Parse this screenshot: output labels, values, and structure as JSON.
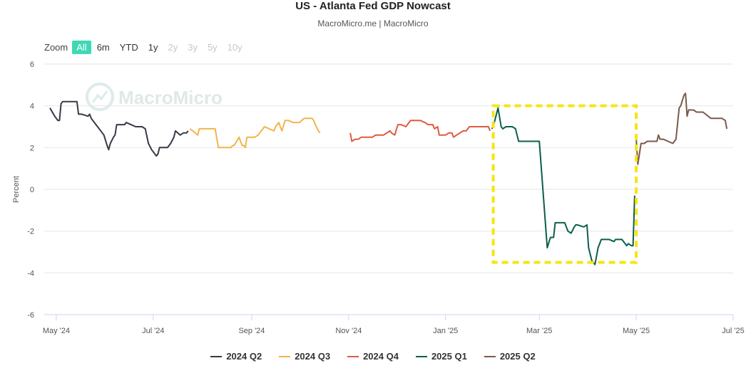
{
  "title": "US - Atlanta Fed GDP Nowcast",
  "subtitle": "MacroMicro.me | MacroMicro",
  "watermark": "MacroMicro",
  "zoom": {
    "label": "Zoom",
    "buttons": [
      {
        "label": "All",
        "state": "active"
      },
      {
        "label": "6m",
        "state": "normal"
      },
      {
        "label": "YTD",
        "state": "normal"
      },
      {
        "label": "1y",
        "state": "normal"
      },
      {
        "label": "2y",
        "state": "disabled"
      },
      {
        "label": "3y",
        "state": "disabled"
      },
      {
        "label": "5y",
        "state": "disabled"
      },
      {
        "label": "10y",
        "state": "disabled"
      }
    ]
  },
  "chart_data": {
    "type": "line",
    "title": "US - Atlanta Fed GDP Nowcast",
    "ylabel": "Percent",
    "xlabel": "",
    "ylim": [
      -6,
      6
    ],
    "yticks": [
      6,
      4,
      2,
      0,
      -2,
      -4,
      -6
    ],
    "x_range_days": [
      0,
      430
    ],
    "xticks": [
      {
        "label": "May '24",
        "day": 4
      },
      {
        "label": "Jul '24",
        "day": 65
      },
      {
        "label": "Sep '24",
        "day": 127
      },
      {
        "label": "Nov '24",
        "day": 188
      },
      {
        "label": "Jan '25",
        "day": 249
      },
      {
        "label": "Mar '25",
        "day": 308
      },
      {
        "label": "May '25",
        "day": 369
      },
      {
        "label": "Jul '25",
        "day": 430
      }
    ],
    "x_origin_date": "2024-04-27",
    "series": [
      {
        "name": "2024 Q2",
        "color": "#363a46",
        "points": [
          [
            0,
            3.9
          ],
          [
            3,
            3.5
          ],
          [
            5,
            3.3
          ],
          [
            6,
            3.3
          ],
          [
            7,
            4.1
          ],
          [
            8,
            4.2
          ],
          [
            12,
            4.2
          ],
          [
            15,
            4.2
          ],
          [
            17,
            4.2
          ],
          [
            18,
            3.6
          ],
          [
            20,
            3.6
          ],
          [
            24,
            3.5
          ],
          [
            25,
            3.6
          ],
          [
            26,
            3.4
          ],
          [
            29,
            3.1
          ],
          [
            34,
            2.6
          ],
          [
            36,
            2.1
          ],
          [
            37,
            1.9
          ],
          [
            38,
            2.2
          ],
          [
            40,
            2.5
          ],
          [
            41,
            2.6
          ],
          [
            42,
            3.1
          ],
          [
            45,
            3.1
          ],
          [
            47,
            3.1
          ],
          [
            48,
            3.2
          ],
          [
            51,
            3.1
          ],
          [
            54,
            3.0
          ],
          [
            58,
            3.0
          ],
          [
            60,
            2.9
          ],
          [
            62,
            2.2
          ],
          [
            64,
            1.9
          ],
          [
            67,
            1.6
          ],
          [
            68,
            1.7
          ],
          [
            69,
            2.0
          ],
          [
            72,
            2.0
          ],
          [
            74,
            2.0
          ],
          [
            75,
            2.1
          ],
          [
            76,
            2.2
          ],
          [
            78,
            2.5
          ],
          [
            79,
            2.8
          ],
          [
            82,
            2.6
          ],
          [
            84,
            2.7
          ],
          [
            86,
            2.7
          ],
          [
            87,
            2.8
          ]
        ]
      },
      {
        "name": "2024 Q3",
        "color": "#f2b44c",
        "points": [
          [
            88,
            2.9
          ],
          [
            90,
            2.8
          ],
          [
            93,
            2.6
          ],
          [
            94,
            2.9
          ],
          [
            100,
            2.9
          ],
          [
            104,
            2.9
          ],
          [
            106,
            2.0
          ],
          [
            110,
            2.0
          ],
          [
            114,
            2.0
          ],
          [
            115,
            2.1
          ],
          [
            116,
            2.1
          ],
          [
            119,
            2.5
          ],
          [
            121,
            2.1
          ],
          [
            122,
            2.1
          ],
          [
            123,
            2.0
          ],
          [
            124,
            2.5
          ],
          [
            129,
            2.5
          ],
          [
            131,
            2.6
          ],
          [
            135,
            3.0
          ],
          [
            138,
            2.9
          ],
          [
            141,
            2.8
          ],
          [
            142,
            3.0
          ],
          [
            144,
            3.2
          ],
          [
            146,
            2.8
          ],
          [
            148,
            3.3
          ],
          [
            150,
            3.3
          ],
          [
            153,
            3.2
          ],
          [
            157,
            3.2
          ],
          [
            160,
            3.4
          ],
          [
            162,
            3.4
          ],
          [
            165,
            3.4
          ],
          [
            166,
            3.3
          ],
          [
            167,
            3.1
          ],
          [
            169,
            2.8
          ],
          [
            170,
            2.7
          ]
        ]
      },
      {
        "name": "2024 Q4",
        "color": "#e05a40",
        "points": [
          [
            189,
            2.7
          ],
          [
            190,
            2.3
          ],
          [
            192,
            2.4
          ],
          [
            194,
            2.4
          ],
          [
            196,
            2.5
          ],
          [
            201,
            2.5
          ],
          [
            203,
            2.5
          ],
          [
            205,
            2.6
          ],
          [
            210,
            2.6
          ],
          [
            214,
            2.8
          ],
          [
            215,
            2.7
          ],
          [
            217,
            2.6
          ],
          [
            219,
            3.1
          ],
          [
            221,
            3.1
          ],
          [
            224,
            3.0
          ],
          [
            227,
            3.3
          ],
          [
            230,
            3.3
          ],
          [
            233,
            3.3
          ],
          [
            236,
            3.2
          ],
          [
            238,
            3.1
          ],
          [
            241,
            3.1
          ],
          [
            242,
            2.9
          ],
          [
            244,
            3.0
          ],
          [
            245,
            2.6
          ],
          [
            249,
            2.6
          ],
          [
            251,
            2.7
          ],
          [
            253,
            2.7
          ],
          [
            254,
            2.5
          ],
          [
            256,
            2.6
          ],
          [
            258,
            2.7
          ],
          [
            260,
            2.8
          ],
          [
            262,
            2.8
          ],
          [
            264,
            3.0
          ],
          [
            271,
            3.0
          ],
          [
            276,
            3.0
          ],
          [
            277,
            2.8
          ]
        ]
      },
      {
        "name": "2025 Q1",
        "color": "#0b5e4d",
        "points": [
          [
            278,
            2.9
          ],
          [
            279,
            3.0
          ],
          [
            282,
            3.9
          ],
          [
            284,
            3.0
          ],
          [
            285,
            2.9
          ],
          [
            287,
            3.0
          ],
          [
            291,
            3.0
          ],
          [
            293,
            2.9
          ],
          [
            295,
            2.3
          ],
          [
            300,
            2.3
          ],
          [
            307,
            2.3
          ],
          [
            308,
            2.3
          ],
          [
            313,
            -2.8
          ],
          [
            315,
            -2.3
          ],
          [
            317,
            -2.3
          ],
          [
            318,
            -1.6
          ],
          [
            322,
            -1.6
          ],
          [
            324,
            -1.6
          ],
          [
            326,
            -2.0
          ],
          [
            328,
            -2.1
          ],
          [
            330,
            -1.8
          ],
          [
            331,
            -1.7
          ],
          [
            332,
            -1.7
          ],
          [
            336,
            -1.8
          ],
          [
            338,
            -1.7
          ],
          [
            339,
            -2.8
          ],
          [
            341,
            -3.4
          ],
          [
            343,
            -3.6
          ],
          [
            344,
            -3.2
          ],
          [
            345,
            -2.8
          ],
          [
            347,
            -2.4
          ],
          [
            352,
            -2.4
          ],
          [
            355,
            -2.5
          ],
          [
            356,
            -2.4
          ],
          [
            360,
            -2.4
          ],
          [
            363,
            -2.7
          ],
          [
            364,
            -2.6
          ],
          [
            366,
            -2.7
          ],
          [
            367,
            -2.7
          ],
          [
            368,
            -0.3
          ]
        ]
      },
      {
        "name": "2025 Q2",
        "color": "#7a5a4a",
        "points": [
          [
            369,
            2.4
          ],
          [
            370,
            1.2
          ],
          [
            371,
            1.7
          ],
          [
            372,
            2.2
          ],
          [
            374,
            2.2
          ],
          [
            376,
            2.3
          ],
          [
            380,
            2.3
          ],
          [
            382,
            2.3
          ],
          [
            383,
            2.6
          ],
          [
            384,
            2.4
          ],
          [
            386,
            2.4
          ],
          [
            389,
            2.3
          ],
          [
            392,
            2.2
          ],
          [
            394,
            2.4
          ],
          [
            396,
            3.9
          ],
          [
            397,
            4.0
          ],
          [
            399,
            4.5
          ],
          [
            400,
            4.6
          ],
          [
            401,
            3.5
          ],
          [
            402,
            3.8
          ],
          [
            403,
            3.8
          ],
          [
            405,
            3.8
          ],
          [
            407,
            3.7
          ],
          [
            411,
            3.7
          ],
          [
            416,
            3.4
          ],
          [
            420,
            3.4
          ],
          [
            423,
            3.4
          ],
          [
            425,
            3.3
          ],
          [
            426,
            2.9
          ]
        ]
      }
    ],
    "highlight_box": {
      "x_range_days": [
        279,
        369
      ],
      "y_range": [
        -3.5,
        4.0
      ],
      "color": "#f5e512"
    }
  }
}
